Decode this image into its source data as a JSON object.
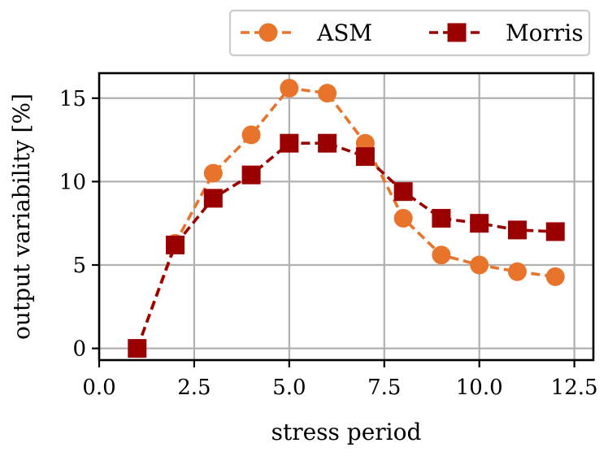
{
  "chart_data": {
    "type": "line",
    "title": "",
    "xlabel": "stress period",
    "ylabel": "output variability [%]",
    "xlim": [
      0.0,
      13.0
    ],
    "ylim": [
      -0.7,
      16.5
    ],
    "xticks": [
      0.0,
      2.5,
      5.0,
      7.5,
      10.0,
      12.5
    ],
    "xtick_labels": [
      "0.0",
      "2.5",
      "5.0",
      "7.5",
      "10.0",
      "12.5"
    ],
    "yticks": [
      0,
      5,
      10,
      15
    ],
    "ytick_labels": [
      "0",
      "5",
      "10",
      "15"
    ],
    "grid": true,
    "legend_position": "top-right, above plot",
    "series": [
      {
        "name": "ASM",
        "color": "#e8742c",
        "marker": "circle",
        "line_style": "dashed",
        "x": [
          1,
          2,
          3,
          4,
          5,
          6,
          7,
          8,
          9,
          10,
          11,
          12
        ],
        "values": [
          0.0,
          6.3,
          10.5,
          12.8,
          15.6,
          15.3,
          12.3,
          7.8,
          5.6,
          5.0,
          4.6,
          4.3
        ]
      },
      {
        "name": "Morris",
        "color": "#9b0000",
        "marker": "square",
        "line_style": "dashed",
        "x": [
          1,
          2,
          3,
          4,
          5,
          6,
          7,
          8,
          9,
          10,
          11,
          12
        ],
        "values": [
          0.0,
          6.2,
          9.0,
          10.4,
          12.3,
          12.3,
          11.5,
          9.4,
          7.8,
          7.5,
          7.1,
          7.0
        ]
      }
    ]
  }
}
